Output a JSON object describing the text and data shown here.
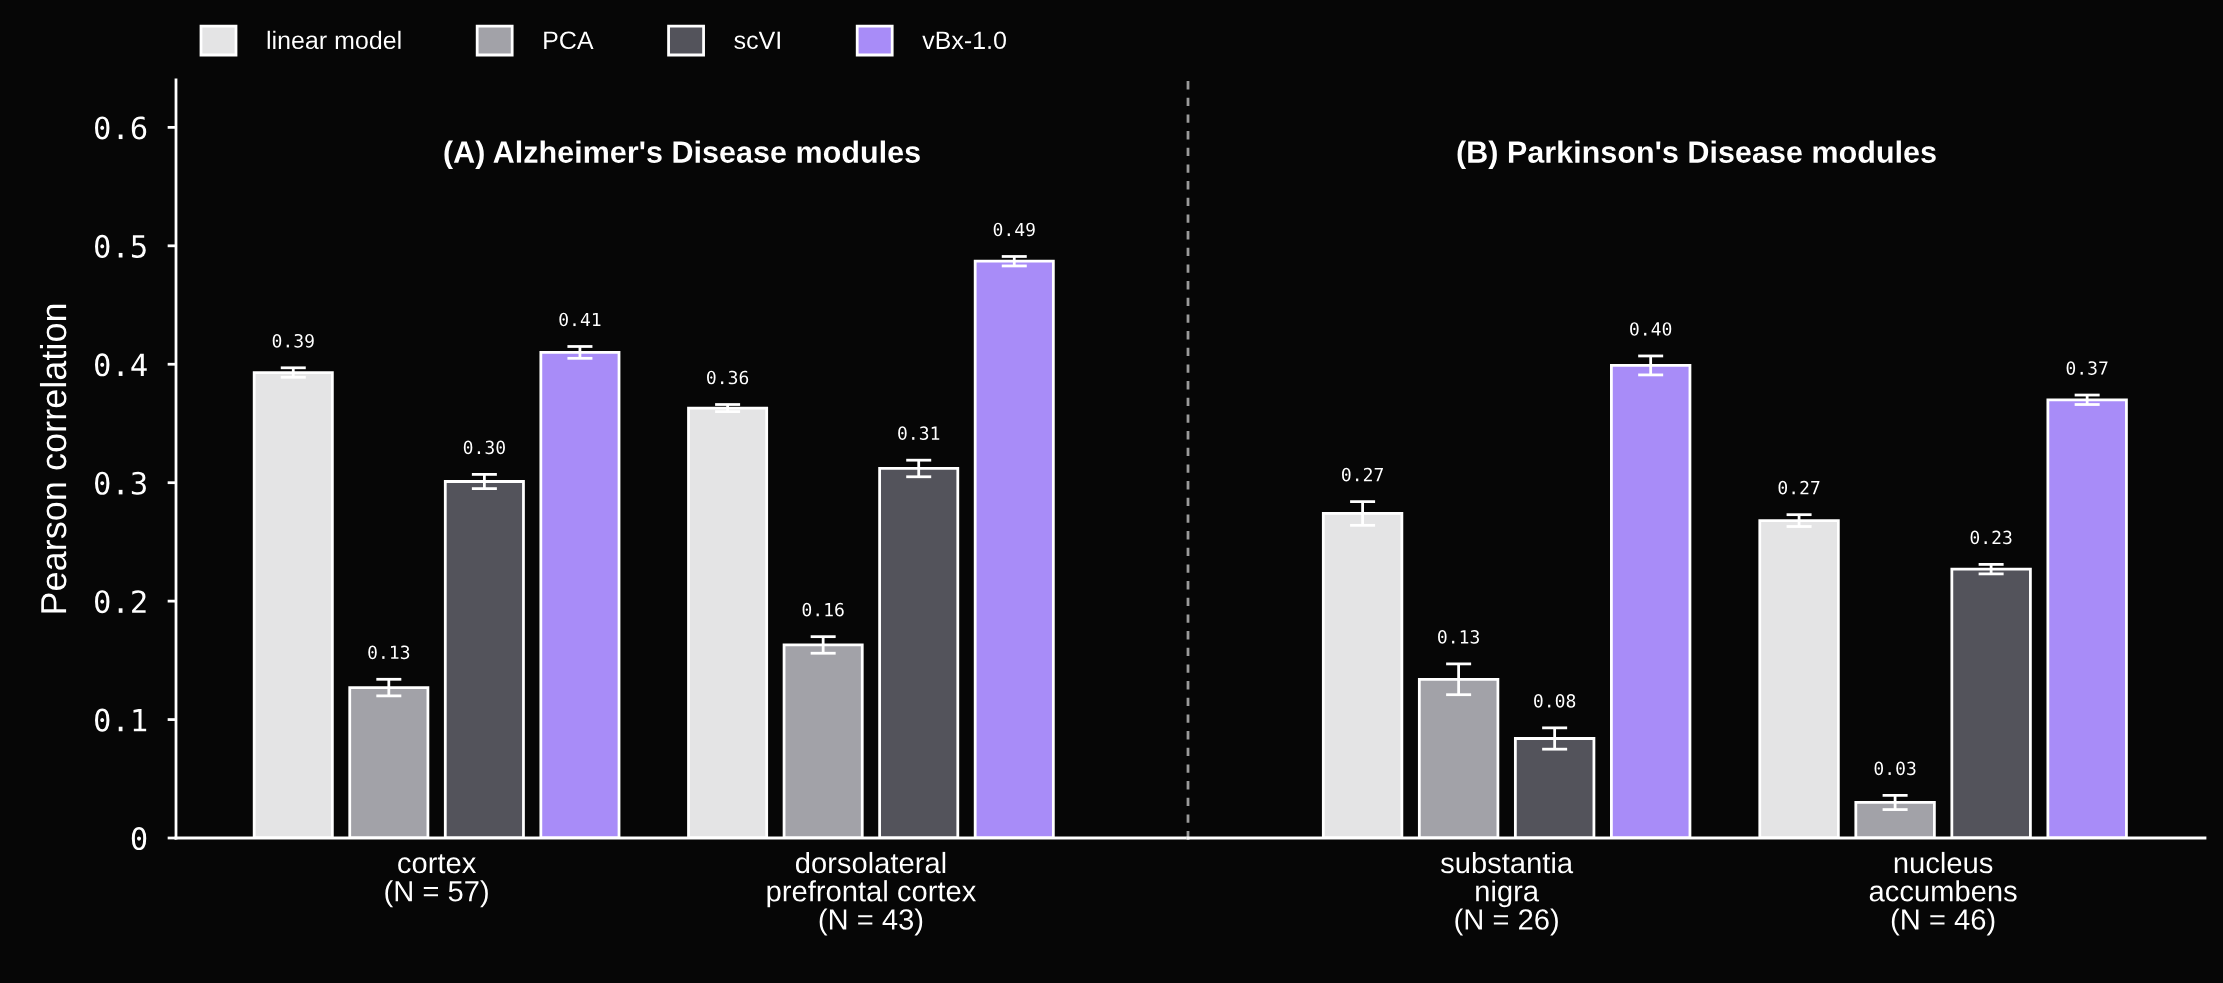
{
  "chart_data": [
    {
      "type": "bar",
      "title": "(A) Alzheimer's Disease modules",
      "ylabel": "Pearson correlation",
      "categories": [
        "cortex\n(N = 57)",
        "dorsolateral\nprefrontal cortex\n(N = 43)"
      ],
      "ylim": [
        0,
        0.64
      ],
      "yticks": [
        {
          "value": 0,
          "label": "0"
        },
        0.1,
        0.2,
        0.3,
        0.4,
        0.5,
        0.6
      ],
      "legend": "top left",
      "grid": false,
      "series": [
        {
          "name": "linear model",
          "color": "#e4e4e5",
          "values": [
            0.393,
            0.363
          ],
          "errors": [
            0.004,
            0.003
          ],
          "value_labels": [
            "0.39",
            "0.36"
          ]
        },
        {
          "name": "PCA",
          "color": "#a2a2a8",
          "values": [
            0.127,
            0.163
          ],
          "errors": [
            0.007,
            0.007
          ],
          "value_labels": [
            "0.13",
            "0.16"
          ]
        },
        {
          "name": "scVI",
          "color": "#53535b",
          "values": [
            0.301,
            0.312
          ],
          "errors": [
            0.006,
            0.007
          ],
          "value_labels": [
            "0.30",
            "0.31"
          ]
        },
        {
          "name": "vBx-1.0",
          "color": "#a88cf8",
          "values": [
            0.41,
            0.487
          ],
          "errors": [
            0.005,
            0.004
          ],
          "value_labels": [
            "0.41",
            "0.49"
          ]
        }
      ]
    },
    {
      "type": "bar",
      "title": "(B) Parkinson's Disease modules",
      "categories": [
        "substantia\nnigra\n(N = 26)",
        "nucleus\naccumbens\n(N = 46)"
      ],
      "ylim": [
        0,
        0.64
      ],
      "tick_labels": "x",
      "grid": false,
      "series": [
        {
          "color": "#e4e4e5",
          "values": [
            0.274,
            0.268
          ],
          "errors": [
            0.01,
            0.005
          ],
          "value_labels": [
            "0.27",
            "0.27"
          ]
        },
        {
          "color": "#a2a2a8",
          "values": [
            0.134,
            0.03
          ],
          "errors": [
            0.013,
            0.006
          ],
          "value_labels": [
            "0.13",
            "0.03"
          ]
        },
        {
          "color": "#53535b",
          "values": [
            0.084,
            0.227
          ],
          "errors": [
            0.009,
            0.004
          ],
          "value_labels": [
            "0.08",
            "0.23"
          ]
        },
        {
          "color": "#a88cf8",
          "values": [
            0.399,
            0.37
          ],
          "errors": [
            0.008,
            0.004
          ],
          "value_labels": [
            "0.40",
            "0.37"
          ]
        }
      ]
    }
  ]
}
